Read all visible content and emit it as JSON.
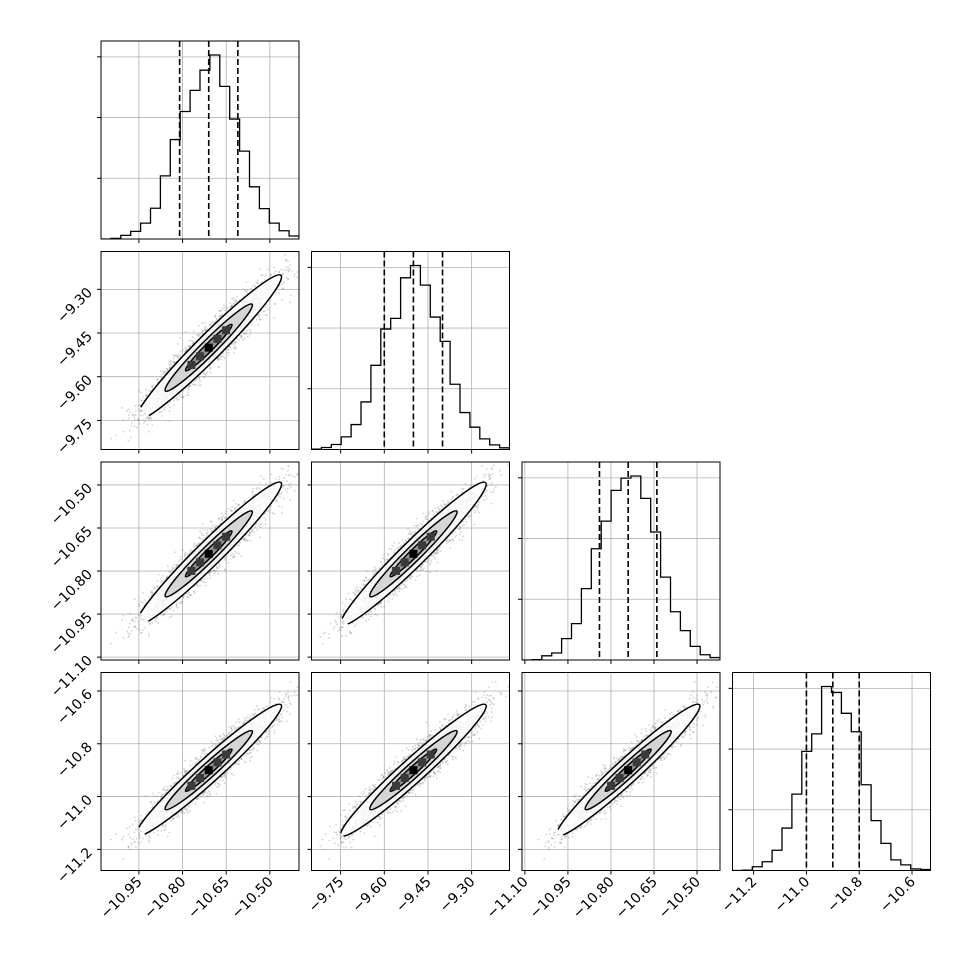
{
  "chart_data": {
    "type": "corner",
    "description_of_series": "Four parameters; 1D histograms on the diagonal, 2D scatter + density contours below.",
    "params": [
      {
        "range": [
          -11.08,
          -10.4
        ],
        "mu": -10.71,
        "sigma": 0.1,
        "quantiles": [
          -10.81,
          -10.71,
          -10.61
        ],
        "ticks": [
          -10.95,
          -10.8,
          -10.65,
          -10.5
        ],
        "tick_labels": [
          "−10.95",
          "−10.80",
          "−10.65",
          "−10.50"
        ]
      },
      {
        "range": [
          -9.85,
          -9.17
        ],
        "mu": -9.5,
        "sigma": 0.1,
        "quantiles": [
          -9.6,
          -9.5,
          -9.4
        ],
        "ticks": [
          -9.75,
          -9.6,
          -9.45,
          -9.3
        ],
        "tick_labels": [
          "−9.75",
          "−9.60",
          "−9.45",
          "−9.30"
        ]
      },
      {
        "range": [
          -11.11,
          -10.42
        ],
        "mu": -10.74,
        "sigma": 0.1,
        "quantiles": [
          -10.84,
          -10.74,
          -10.64
        ],
        "ticks": [
          -11.1,
          -10.95,
          -10.8,
          -10.65,
          -10.5
        ],
        "tick_labels": [
          "−11.10",
          "−10.95",
          "−10.80",
          "−10.65",
          "−10.50"
        ]
      },
      {
        "range": [
          -11.28,
          -10.53
        ],
        "mu": -10.9,
        "sigma": 0.1,
        "quantiles": [
          -11.0,
          -10.9,
          -10.8
        ],
        "ticks": [
          -11.2,
          -11.0,
          -10.8,
          -10.6
        ],
        "tick_labels": [
          "−11.2",
          "−11.0",
          "−10.8",
          "−10.6"
        ]
      }
    ],
    "correlation": 0.97,
    "samples": 4000,
    "colors": {
      "line": "#000000",
      "grid": "#b0b0b0",
      "scatter": "#808080"
    }
  }
}
